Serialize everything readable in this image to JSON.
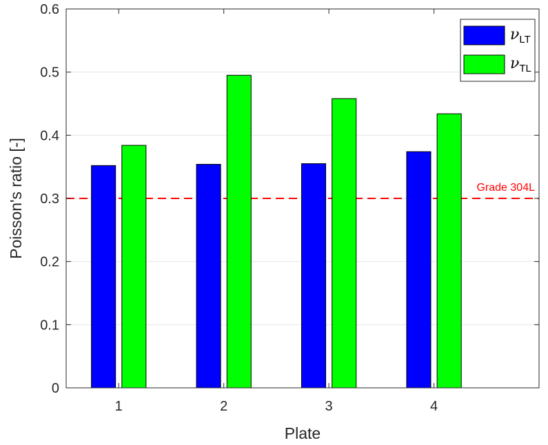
{
  "chart_data": {
    "type": "bar",
    "categories": [
      "1",
      "2",
      "3",
      "4"
    ],
    "xlabel": "Plate",
    "ylabel": "Poisson's ratio [-]",
    "ylim": [
      0,
      0.6
    ],
    "yticks": [
      0,
      0.1,
      0.2,
      0.3,
      0.4,
      0.5,
      0.6
    ],
    "ytick_labels": [
      "0",
      "0.1",
      "0.2",
      "0.3",
      "0.4",
      "0.5",
      "0.6"
    ],
    "xlim": [
      0.5,
      5
    ],
    "grid": "y",
    "legend_position": "top-right",
    "series": [
      {
        "name": "νLT",
        "symbol": "ν",
        "subscript": "LT",
        "color": "#0000ff",
        "values": [
          0.352,
          0.354,
          0.355,
          0.374
        ]
      },
      {
        "name": "νTL",
        "symbol": "ν",
        "subscript": "TL",
        "color": "#00ff00",
        "values": [
          0.384,
          0.495,
          0.458,
          0.434
        ]
      }
    ],
    "reference_line": {
      "value": 0.3,
      "label": "Grade 304L",
      "color": "#ff0000",
      "style": "dashed"
    }
  }
}
